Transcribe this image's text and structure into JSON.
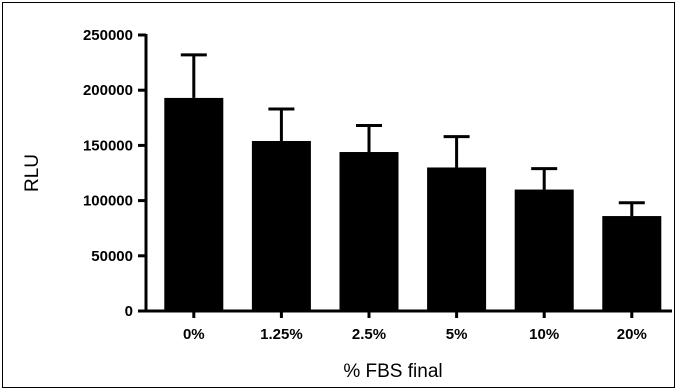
{
  "chart_data": {
    "type": "bar",
    "xlabel": "% FBS final",
    "ylabel": "RLU",
    "ylim": [
      0,
      250000
    ],
    "yticks": [
      0,
      50000,
      100000,
      150000,
      200000,
      250000
    ],
    "ytick_labels": [
      "0",
      "50000",
      "100000",
      "150000",
      "200000",
      "250000"
    ],
    "categories": [
      "0%",
      "1.25%",
      "2.5%",
      "5%",
      "10%",
      "20%"
    ],
    "values": [
      193000,
      154000,
      144000,
      130000,
      110000,
      86000
    ],
    "error_upper": [
      232000,
      183000,
      168000,
      158000,
      129000,
      98000
    ],
    "grid": false,
    "bar_color": "#000000"
  }
}
